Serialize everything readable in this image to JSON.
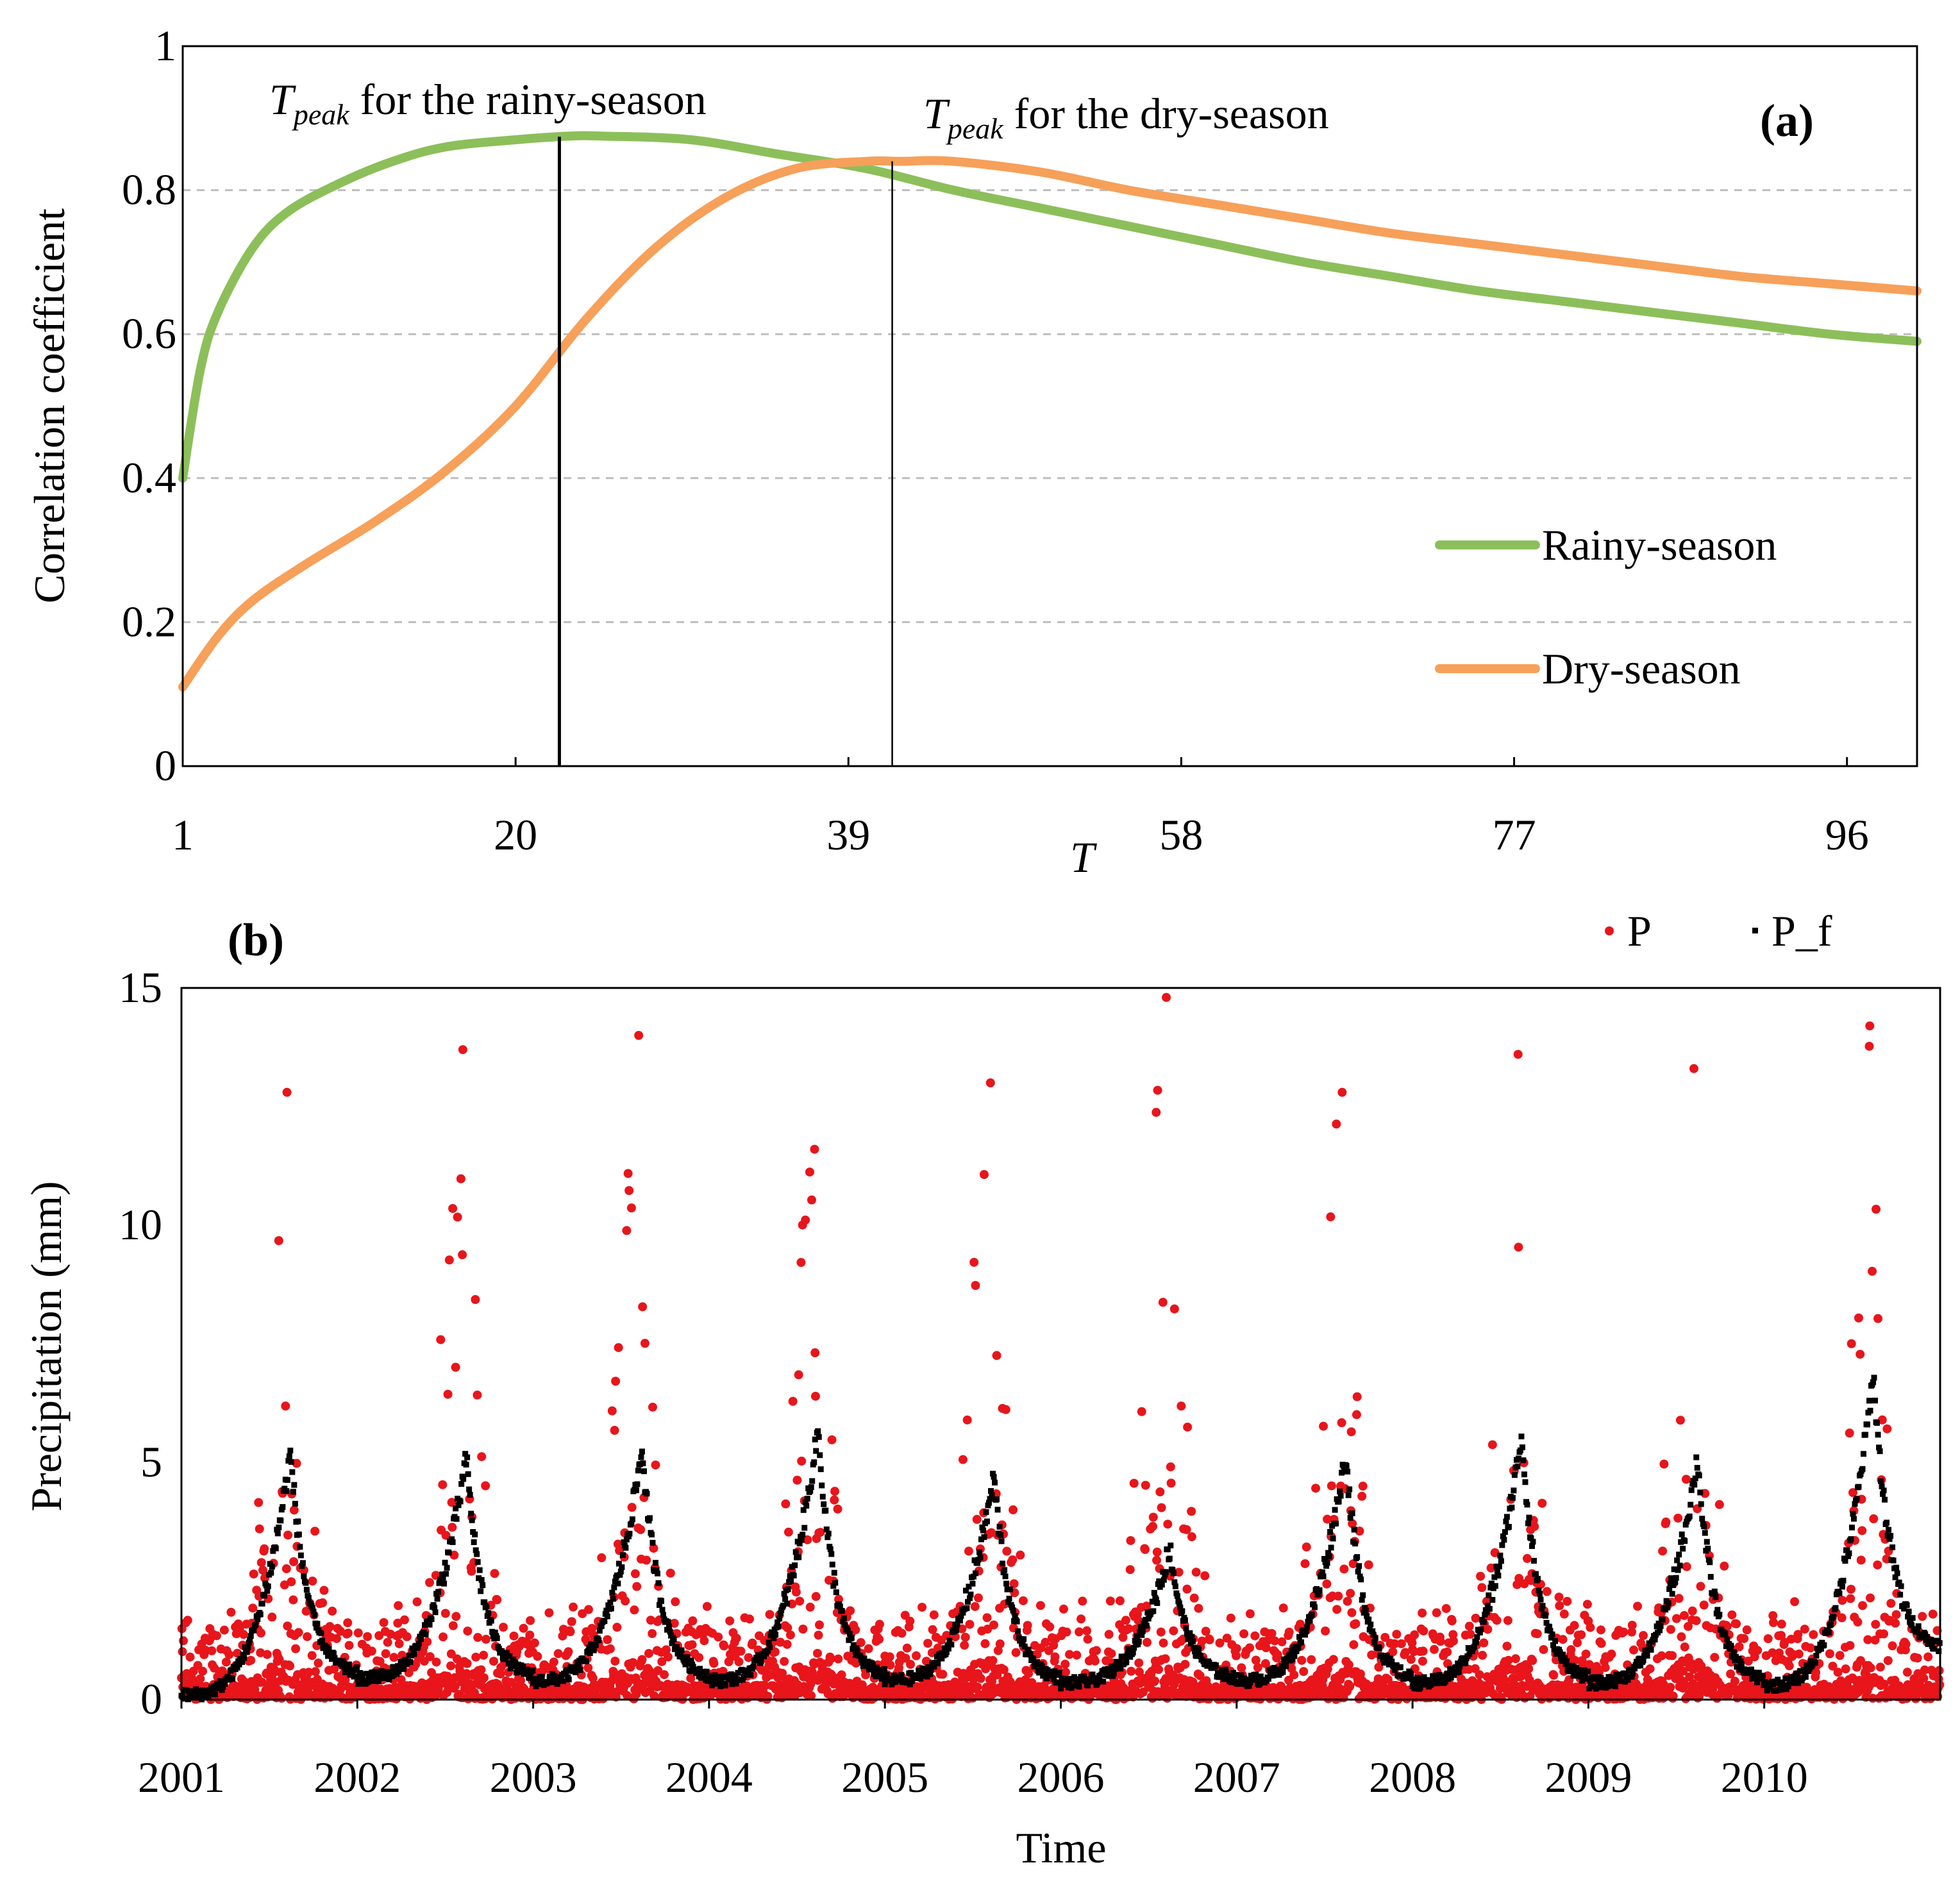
{
  "chart_data": [
    {
      "type": "line",
      "panel_label": "(a)",
      "xlabel": "T",
      "ylabel": "Correlation coefficient",
      "xlim": [
        1,
        100
      ],
      "ylim": [
        0,
        1
      ],
      "x_ticks": [
        "1",
        "20",
        "39",
        "58",
        "77",
        "96"
      ],
      "y_ticks": [
        "0",
        "0.2",
        "0.4",
        "0.6",
        "0.8",
        "1"
      ],
      "grid": true,
      "legend_position": "bottom-right",
      "series": [
        {
          "name": "Rainy-season",
          "color": "#8cbf5a",
          "x": [
            1,
            2,
            3,
            5,
            7,
            10,
            13,
            16,
            20,
            23,
            25,
            30,
            35,
            40,
            45,
            50,
            55,
            60,
            65,
            70,
            75,
            80,
            85,
            90,
            95,
            100
          ],
          "values": [
            0.4,
            0.55,
            0.63,
            0.72,
            0.77,
            0.81,
            0.84,
            0.86,
            0.87,
            0.875,
            0.875,
            0.87,
            0.85,
            0.83,
            0.8,
            0.775,
            0.75,
            0.725,
            0.7,
            0.68,
            0.66,
            0.645,
            0.63,
            0.615,
            0.6,
            0.59
          ]
        },
        {
          "name": "Dry-season",
          "color": "#f6a05a",
          "x": [
            1,
            3,
            5,
            8,
            12,
            16,
            20,
            24,
            28,
            32,
            36,
            40,
            42,
            45,
            50,
            55,
            60,
            65,
            70,
            75,
            80,
            85,
            90,
            95,
            100
          ],
          "values": [
            0.11,
            0.18,
            0.23,
            0.28,
            0.34,
            0.41,
            0.5,
            0.62,
            0.72,
            0.79,
            0.83,
            0.84,
            0.84,
            0.84,
            0.825,
            0.8,
            0.78,
            0.76,
            0.74,
            0.725,
            0.71,
            0.695,
            0.68,
            0.67,
            0.66
          ]
        }
      ],
      "annotations": [
        {
          "t": "T",
          "sub": "peak",
          "text": " for the rainy-season",
          "x": 22.5
        },
        {
          "t": "T",
          "sub": "peak",
          "text": " for the dry-season",
          "x": 41.5
        }
      ]
    },
    {
      "type": "scatter",
      "panel_label": "(b)",
      "xlabel": "Time",
      "ylabel": "Precipitation (mm)",
      "xlim": [
        2001,
        2011
      ],
      "ylim": [
        0,
        15
      ],
      "x_ticks": [
        "2001",
        "2002",
        "2003",
        "2004",
        "2005",
        "2006",
        "2007",
        "2008",
        "2009",
        "2010"
      ],
      "y_ticks": [
        "0",
        "5",
        "10",
        "15"
      ],
      "legend_position": "top-right",
      "series": [
        {
          "name": "P",
          "color": "#e8151b",
          "description_of_pattern": "daily precipitation, mostly 0-3 mm with seasonal summer peaks",
          "yearly_peak_values": [
            12.8,
            13.7,
            14.0,
            11.6,
            13.0,
            14.8,
            12.8,
            13.6,
            13.3,
            14.2
          ]
        },
        {
          "name": "P_f",
          "color": "#000000",
          "description_of_pattern": "filtered precipitation, smooth seasonal cycle",
          "yearly_peak_values": [
            5.2,
            5.1,
            5.3,
            5.7,
            4.7,
            3.2,
            5.2,
            5.6,
            5.1,
            6.9
          ],
          "yearly_base_values": [
            0.1,
            0.45,
            0.4,
            0.4,
            0.4,
            0.35,
            0.4,
            0.35,
            0.35,
            0.3
          ],
          "end_value": 1.0
        }
      ]
    }
  ]
}
